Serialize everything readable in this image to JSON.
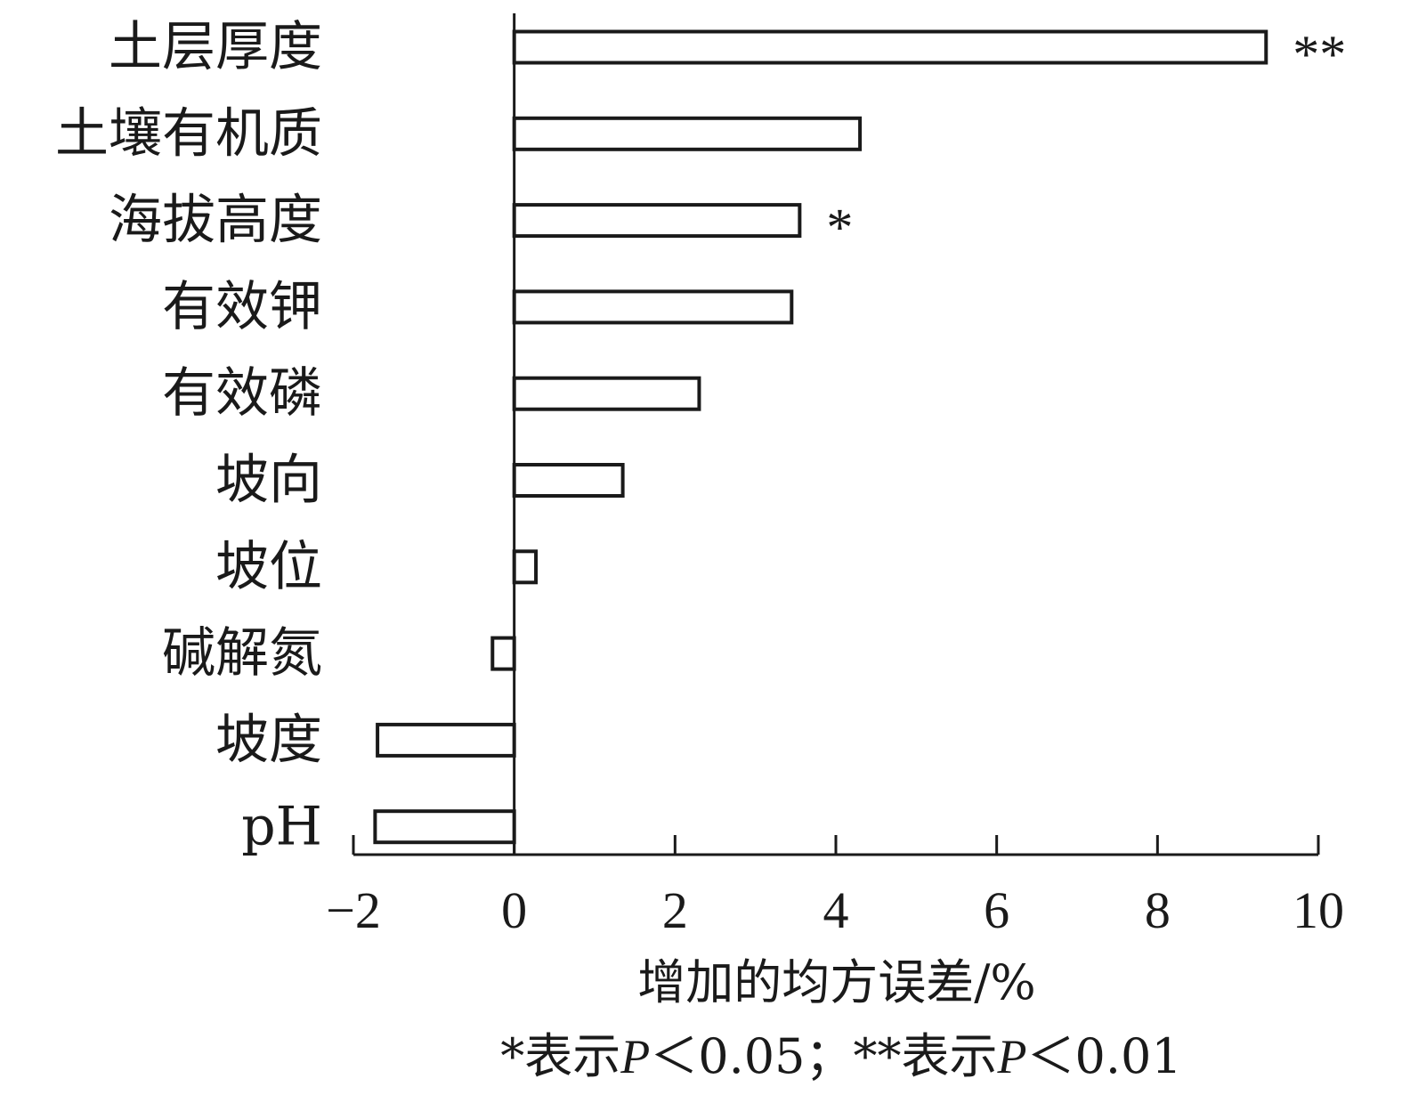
{
  "chart_data": {
    "type": "bar",
    "orientation": "horizontal",
    "categories": [
      "土层厚度",
      "土壤有机质",
      "海拔高度",
      "有效钾",
      "有效磷",
      "坡向",
      "坡位",
      "碱解氮",
      "坡度",
      "pH"
    ],
    "values": [
      9.35,
      4.3,
      3.55,
      3.45,
      2.3,
      1.35,
      0.27,
      -0.27,
      -1.7,
      -1.73
    ],
    "significance": [
      "**",
      "",
      "*",
      "",
      "",
      "",
      "",
      "",
      "",
      ""
    ],
    "xlim": [
      -2,
      10
    ],
    "xticks": [
      -2,
      0,
      2,
      4,
      6,
      8,
      10
    ],
    "xtick_labels": [
      "−2",
      "0",
      "2",
      "4",
      "6",
      "8",
      "10"
    ],
    "xlabel": "增加的均方误差/%",
    "ylabel": "",
    "title": "",
    "note": "*表示P＜0.05；**表示P＜0.01",
    "grid": false,
    "legend": "none",
    "colors": {
      "bar_fill": "#ffffff",
      "bar_stroke": "#1a1a1a",
      "text": "#1a1a1a"
    }
  }
}
